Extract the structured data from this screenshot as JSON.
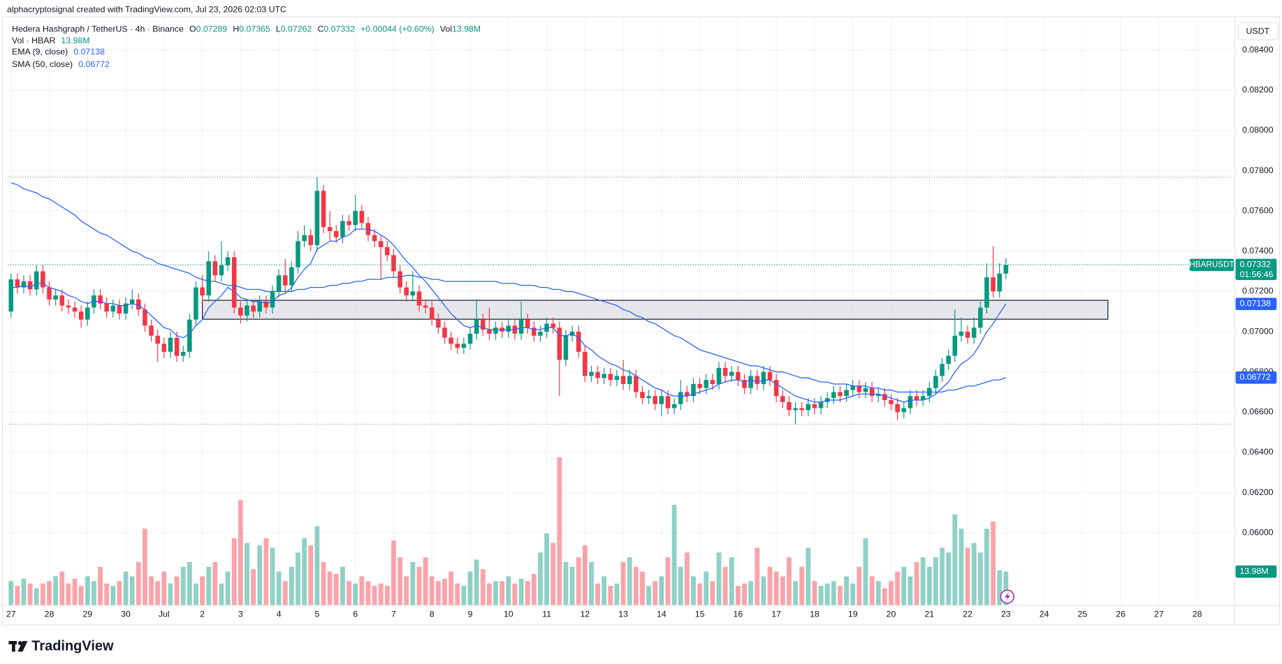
{
  "attribution": "alphacryptosignal created with TradingView.com, Jul 23, 2026 02:03 UTC",
  "brand": "TradingView",
  "chart_data": {
    "type": "candlestick",
    "title": "Hedera Hashgraph / TetherUS · 4h · Binance",
    "ohlc_labels": [
      "O",
      "H",
      "L",
      "C"
    ],
    "change": "+0.00044 (+0.60%)",
    "vol_label": "Vol",
    "volume_name": "Vol · HBAR",
    "volume_label": "13.98M",
    "currency": "USDT",
    "symbol_label": "HBARUSDT",
    "countdown": "01:56:46",
    "up_color": "#089981",
    "down_color": "#f23645",
    "grid": true,
    "xlim": [
      -0.5,
      191.5
    ],
    "xticks": [
      {
        "value": 0,
        "label": "27"
      },
      {
        "value": 6,
        "label": "28"
      },
      {
        "value": 12,
        "label": "29"
      },
      {
        "value": 18,
        "label": "30"
      },
      {
        "value": 24,
        "label": "Jul"
      },
      {
        "value": 30,
        "label": "2"
      },
      {
        "value": 36,
        "label": "3"
      },
      {
        "value": 42,
        "label": "4"
      },
      {
        "value": 48,
        "label": "5"
      },
      {
        "value": 54,
        "label": "6"
      },
      {
        "value": 60,
        "label": "7"
      },
      {
        "value": 66,
        "label": "8"
      },
      {
        "value": 72,
        "label": "9"
      },
      {
        "value": 78,
        "label": "10"
      },
      {
        "value": 84,
        "label": "11"
      },
      {
        "value": 90,
        "label": "12"
      },
      {
        "value": 96,
        "label": "13"
      },
      {
        "value": 102,
        "label": "14"
      },
      {
        "value": 108,
        "label": "15"
      },
      {
        "value": 114,
        "label": "16"
      },
      {
        "value": 120,
        "label": "17"
      },
      {
        "value": 126,
        "label": "18"
      },
      {
        "value": 132,
        "label": "19"
      },
      {
        "value": 138,
        "label": "20"
      },
      {
        "value": 144,
        "label": "21"
      },
      {
        "value": 150,
        "label": "22"
      },
      {
        "value": 156,
        "label": "23"
      },
      {
        "value": 162,
        "label": "24"
      },
      {
        "value": 168,
        "label": "25"
      },
      {
        "value": 174,
        "label": "26"
      },
      {
        "value": 180,
        "label": "27"
      },
      {
        "value": 186,
        "label": "28"
      }
    ],
    "ylim": [
      0.05642,
      0.08567
    ],
    "yticks": [
      {
        "value": 0.084,
        "label": "0.08400"
      },
      {
        "value": 0.082,
        "label": "0.08200"
      },
      {
        "value": 0.08,
        "label": "0.08000"
      },
      {
        "value": 0.078,
        "label": "0.07800"
      },
      {
        "value": 0.076,
        "label": "0.07600"
      },
      {
        "value": 0.074,
        "label": "0.07400"
      },
      {
        "value": 0.072,
        "label": "0.07200"
      },
      {
        "value": 0.07,
        "label": "0.07000"
      },
      {
        "value": 0.068,
        "label": "0.06800"
      },
      {
        "value": 0.066,
        "label": "0.06600"
      },
      {
        "value": 0.064,
        "label": "0.06400"
      },
      {
        "value": 0.062,
        "label": "0.06200"
      },
      {
        "value": 0.06,
        "label": "0.06000"
      }
    ],
    "zone": {
      "from": 30,
      "to": 172,
      "top": 0.07156,
      "bottom": 0.07062
    },
    "open": [
      0.071,
      0.0726,
      0.0722,
      0.0725,
      0.0721,
      0.073,
      0.0722,
      0.0716,
      0.0718,
      0.0713,
      0.0712,
      0.071,
      0.0706,
      0.0712,
      0.0718,
      0.0714,
      0.071,
      0.0713,
      0.0709,
      0.0714,
      0.0716,
      0.0711,
      0.0703,
      0.0698,
      0.0694,
      0.069,
      0.0697,
      0.0688,
      0.069,
      0.0706,
      0.0722,
      0.0718,
      0.0735,
      0.0728,
      0.0733,
      0.0737,
      0.0712,
      0.0708,
      0.0713,
      0.071,
      0.0715,
      0.0712,
      0.072,
      0.0728,
      0.0723,
      0.0732,
      0.0745,
      0.0748,
      0.0743,
      0.077,
      0.0752,
      0.075,
      0.0747,
      0.0755,
      0.0753,
      0.076,
      0.0754,
      0.0748,
      0.0745,
      0.0742,
      0.0738,
      0.073,
      0.0722,
      0.0718,
      0.072,
      0.0713,
      0.0712,
      0.0706,
      0.0702,
      0.0697,
      0.0694,
      0.0692,
      0.0694,
      0.0699,
      0.0706,
      0.0701,
      0.0699,
      0.0702,
      0.07,
      0.0703,
      0.0699,
      0.0706,
      0.0702,
      0.0698,
      0.07,
      0.0704,
      0.0702,
      0.0686,
      0.0698,
      0.07,
      0.069,
      0.0678,
      0.068,
      0.0677,
      0.0679,
      0.0676,
      0.0678,
      0.0674,
      0.0678,
      0.067,
      0.0667,
      0.0668,
      0.0664,
      0.0668,
      0.0662,
      0.0664,
      0.067,
      0.0668,
      0.0674,
      0.0672,
      0.0676,
      0.0674,
      0.0682,
      0.0678,
      0.068,
      0.0676,
      0.0672,
      0.0678,
      0.0674,
      0.068,
      0.0676,
      0.0668,
      0.0665,
      0.0661,
      0.0662,
      0.0661,
      0.0664,
      0.0662,
      0.0665,
      0.0667,
      0.067,
      0.0668,
      0.0671,
      0.0673,
      0.067,
      0.0672,
      0.0668,
      0.0669,
      0.0666,
      0.0664,
      0.066,
      0.0662,
      0.0668,
      0.0666,
      0.0668,
      0.0672,
      0.0678,
      0.0684,
      0.0688,
      0.0698,
      0.07,
      0.0697,
      0.0702,
      0.0712,
      0.0727,
      0.072,
      0.07289
    ],
    "high": [
      0.0729,
      0.0729,
      0.0728,
      0.0728,
      0.0733,
      0.0733,
      0.0725,
      0.0721,
      0.0721,
      0.0716,
      0.0715,
      0.0713,
      0.0715,
      0.0721,
      0.0721,
      0.0717,
      0.0716,
      0.0716,
      0.0717,
      0.0721,
      0.0719,
      0.0714,
      0.0706,
      0.0701,
      0.0697,
      0.07,
      0.07,
      0.0693,
      0.0709,
      0.0725,
      0.0728,
      0.074,
      0.0738,
      0.0745,
      0.074,
      0.074,
      0.0715,
      0.0716,
      0.0716,
      0.0718,
      0.0718,
      0.0723,
      0.0731,
      0.0736,
      0.0735,
      0.075,
      0.0753,
      0.0751,
      0.07768,
      0.0773,
      0.076,
      0.0753,
      0.0758,
      0.0758,
      0.0768,
      0.0763,
      0.0757,
      0.0751,
      0.0748,
      0.0745,
      0.0741,
      0.0733,
      0.0725,
      0.073,
      0.0723,
      0.0716,
      0.0715,
      0.0709,
      0.0705,
      0.07,
      0.0697,
      0.0697,
      0.0702,
      0.0716,
      0.0709,
      0.0712,
      0.0705,
      0.0705,
      0.0706,
      0.0706,
      0.0715,
      0.0709,
      0.0705,
      0.0703,
      0.0707,
      0.0707,
      0.0705,
      0.0701,
      0.0703,
      0.0703,
      0.0693,
      0.0683,
      0.0683,
      0.0682,
      0.0682,
      0.0681,
      0.0686,
      0.0681,
      0.0681,
      0.0673,
      0.0671,
      0.0671,
      0.0671,
      0.0671,
      0.0667,
      0.0676,
      0.0673,
      0.0677,
      0.0677,
      0.0679,
      0.0679,
      0.0685,
      0.0685,
      0.0683,
      0.0683,
      0.0679,
      0.0681,
      0.0681,
      0.0683,
      0.0683,
      0.0679,
      0.0671,
      0.0668,
      0.0665,
      0.0665,
      0.0667,
      0.0667,
      0.0668,
      0.067,
      0.0673,
      0.0673,
      0.0674,
      0.0676,
      0.0676,
      0.0675,
      0.0675,
      0.0672,
      0.0672,
      0.0669,
      0.0667,
      0.0665,
      0.0671,
      0.0671,
      0.0671,
      0.0675,
      0.0681,
      0.0687,
      0.0691,
      0.0711,
      0.0707,
      0.0703,
      0.0707,
      0.0715,
      0.0734,
      0.07425,
      0.0734,
      0.07365
    ],
    "low": [
      0.0707,
      0.0719,
      0.0719,
      0.0718,
      0.0718,
      0.0719,
      0.0713,
      0.0713,
      0.071,
      0.0709,
      0.0707,
      0.0702,
      0.0703,
      0.0709,
      0.0711,
      0.0707,
      0.0707,
      0.0706,
      0.0706,
      0.0711,
      0.0708,
      0.07,
      0.0695,
      0.0685,
      0.0687,
      0.0687,
      0.0685,
      0.0685,
      0.0687,
      0.0703,
      0.0715,
      0.0715,
      0.0725,
      0.0725,
      0.073,
      0.0709,
      0.0704,
      0.0705,
      0.0707,
      0.0707,
      0.0709,
      0.0709,
      0.0717,
      0.072,
      0.072,
      0.0729,
      0.0742,
      0.074,
      0.074,
      0.0749,
      0.0745,
      0.0744,
      0.0744,
      0.075,
      0.075,
      0.0751,
      0.0745,
      0.0742,
      0.0726,
      0.0735,
      0.0727,
      0.0719,
      0.0715,
      0.0715,
      0.071,
      0.0709,
      0.0703,
      0.0699,
      0.0694,
      0.0691,
      0.0689,
      0.0689,
      0.0691,
      0.0696,
      0.0698,
      0.0696,
      0.0696,
      0.0697,
      0.0697,
      0.0696,
      0.0696,
      0.0699,
      0.0695,
      0.0695,
      0.0697,
      0.0699,
      0.0668,
      0.0683,
      0.0695,
      0.0687,
      0.0675,
      0.0675,
      0.0674,
      0.0674,
      0.0673,
      0.0673,
      0.0671,
      0.0671,
      0.0667,
      0.0664,
      0.0664,
      0.0661,
      0.0658,
      0.0659,
      0.0659,
      0.0661,
      0.0665,
      0.0665,
      0.0669,
      0.0669,
      0.0671,
      0.0671,
      0.0675,
      0.0675,
      0.0673,
      0.0669,
      0.0669,
      0.0671,
      0.0671,
      0.0673,
      0.0665,
      0.0662,
      0.0658,
      0.0654,
      0.0658,
      0.0658,
      0.0659,
      0.0659,
      0.0662,
      0.0664,
      0.0665,
      0.0665,
      0.0668,
      0.0667,
      0.0667,
      0.0665,
      0.0665,
      0.0663,
      0.0661,
      0.0656,
      0.0657,
      0.0659,
      0.0663,
      0.0663,
      0.0665,
      0.0669,
      0.0675,
      0.0681,
      0.0685,
      0.0695,
      0.0694,
      0.0694,
      0.0699,
      0.0709,
      0.0717,
      0.0717,
      0.07262
    ],
    "close": [
      0.0726,
      0.0722,
      0.0725,
      0.0721,
      0.073,
      0.0722,
      0.0716,
      0.0718,
      0.0713,
      0.0712,
      0.071,
      0.0706,
      0.0712,
      0.0718,
      0.0714,
      0.071,
      0.0713,
      0.0709,
      0.0714,
      0.0716,
      0.0711,
      0.0703,
      0.0698,
      0.0694,
      0.069,
      0.0697,
      0.0688,
      0.069,
      0.0706,
      0.0722,
      0.0718,
      0.0735,
      0.0728,
      0.0733,
      0.0737,
      0.0712,
      0.0708,
      0.0713,
      0.071,
      0.0715,
      0.0712,
      0.072,
      0.0728,
      0.0723,
      0.0732,
      0.0745,
      0.0748,
      0.0743,
      0.077,
      0.0752,
      0.075,
      0.0747,
      0.0755,
      0.0753,
      0.076,
      0.0754,
      0.0748,
      0.0745,
      0.0742,
      0.0738,
      0.073,
      0.0722,
      0.0718,
      0.072,
      0.0713,
      0.0712,
      0.0706,
      0.0702,
      0.0697,
      0.0694,
      0.0692,
      0.0694,
      0.0699,
      0.0706,
      0.0701,
      0.0699,
      0.0702,
      0.07,
      0.0703,
      0.0699,
      0.0706,
      0.0702,
      0.0698,
      0.07,
      0.0704,
      0.0702,
      0.0686,
      0.0698,
      0.07,
      0.069,
      0.0678,
      0.068,
      0.0677,
      0.0679,
      0.0676,
      0.0678,
      0.0674,
      0.0678,
      0.067,
      0.0667,
      0.0668,
      0.0664,
      0.0668,
      0.0662,
      0.0664,
      0.067,
      0.0668,
      0.0674,
      0.0672,
      0.0676,
      0.0674,
      0.0682,
      0.0678,
      0.068,
      0.0676,
      0.0672,
      0.0678,
      0.0674,
      0.068,
      0.0676,
      0.0668,
      0.0665,
      0.0661,
      0.0662,
      0.0661,
      0.0664,
      0.0662,
      0.0665,
      0.0667,
      0.067,
      0.0668,
      0.0671,
      0.0673,
      0.067,
      0.0672,
      0.0668,
      0.0669,
      0.0666,
      0.0664,
      0.066,
      0.0662,
      0.0668,
      0.0666,
      0.0668,
      0.0672,
      0.0678,
      0.0684,
      0.0688,
      0.0698,
      0.07,
      0.0697,
      0.0702,
      0.0712,
      0.0727,
      0.072,
      0.07289,
      0.07332
    ],
    "volume": [
      10,
      8,
      11,
      9,
      7,
      9,
      10,
      12,
      14,
      9,
      11,
      8,
      12,
      10,
      16,
      9,
      8,
      10,
      14,
      12,
      18,
      32,
      12,
      10,
      14,
      9,
      12,
      16,
      18,
      9,
      12,
      16,
      18,
      9,
      14,
      28,
      44,
      26,
      15,
      25,
      28,
      24,
      14,
      10,
      16,
      22,
      28,
      25,
      33,
      18,
      14,
      13,
      16,
      10,
      9,
      12,
      10,
      8,
      9,
      8,
      27,
      20,
      12,
      18,
      16,
      20,
      12,
      10,
      11,
      14,
      9,
      8,
      14,
      19,
      15,
      9,
      10,
      10,
      12,
      9,
      11,
      10,
      13,
      22,
      30,
      26,
      62,
      18,
      16,
      20,
      25,
      18,
      9,
      12,
      8,
      9,
      18,
      20,
      16,
      14,
      8,
      10,
      12,
      20,
      42,
      16,
      22,
      12,
      9,
      14,
      10,
      22,
      16,
      20,
      8,
      9,
      10,
      24,
      12,
      16,
      14,
      12,
      20,
      10,
      16,
      24,
      10,
      8,
      9,
      10,
      8,
      12,
      9,
      16,
      28,
      12,
      10,
      7,
      10,
      14,
      16,
      12,
      18,
      20,
      16,
      20,
      24,
      22,
      38,
      32,
      24,
      26,
      22,
      32,
      35,
      14.5,
      13.98
    ],
    "indicators": [
      {
        "name": "EMA (9, close)",
        "color": "#2962ff",
        "values": [
          0.0722,
          0.0722,
          0.0723,
          0.0722,
          0.0724,
          0.0724,
          0.0722,
          0.0721,
          0.072,
          0.0718,
          0.0717,
          0.0715,
          0.0714,
          0.0715,
          0.0715,
          0.0714,
          0.0714,
          0.0713,
          0.0713,
          0.0714,
          0.0713,
          0.0711,
          0.0708,
          0.0705,
          0.0702,
          0.0701,
          0.0698,
          0.0697,
          0.0699,
          0.0703,
          0.0706,
          0.0712,
          0.0715,
          0.0718,
          0.0722,
          0.072,
          0.0717,
          0.0716,
          0.0715,
          0.0715,
          0.0714,
          0.0715,
          0.0718,
          0.0719,
          0.0722,
          0.0727,
          0.0731,
          0.0734,
          0.0741,
          0.0743,
          0.0745,
          0.0745,
          0.0747,
          0.0748,
          0.0751,
          0.0751,
          0.0751,
          0.075,
          0.0748,
          0.0746,
          0.0743,
          0.0739,
          0.0735,
          0.0732,
          0.0728,
          0.0725,
          0.0721,
          0.0717,
          0.0713,
          0.0709,
          0.0706,
          0.0703,
          0.0702,
          0.0703,
          0.0702,
          0.0701,
          0.0701,
          0.0701,
          0.0701,
          0.0701,
          0.0702,
          0.0702,
          0.0701,
          0.0701,
          0.0702,
          0.0702,
          0.0698,
          0.0698,
          0.0699,
          0.0697,
          0.0693,
          0.0691,
          0.0688,
          0.0686,
          0.0684,
          0.0683,
          0.0681,
          0.068,
          0.0678,
          0.0676,
          0.0674,
          0.0672,
          0.0671,
          0.0669,
          0.0668,
          0.0668,
          0.0668,
          0.0669,
          0.067,
          0.0671,
          0.0672,
          0.0674,
          0.0675,
          0.0676,
          0.0676,
          0.0675,
          0.0676,
          0.0675,
          0.0676,
          0.0676,
          0.0674,
          0.0672,
          0.067,
          0.0668,
          0.0667,
          0.0666,
          0.0665,
          0.0665,
          0.0666,
          0.0666,
          0.0666,
          0.0667,
          0.0668,
          0.0669,
          0.0669,
          0.0669,
          0.0669,
          0.0668,
          0.0667,
          0.0666,
          0.0665,
          0.0666,
          0.0666,
          0.0666,
          0.0667,
          0.0669,
          0.0672,
          0.0675,
          0.068,
          0.0684,
          0.0686,
          0.0689,
          0.0694,
          0.07,
          0.0704,
          0.07091,
          0.07138
        ]
      },
      {
        "name": "SMA (50, close)",
        "color": "#2962ff",
        "values": [
          0.0774,
          0.0773,
          0.0771,
          0.077,
          0.0769,
          0.0767,
          0.0766,
          0.0764,
          0.0762,
          0.076,
          0.0758,
          0.0755,
          0.0753,
          0.0751,
          0.0749,
          0.0748,
          0.0746,
          0.0744,
          0.0742,
          0.074,
          0.0739,
          0.0737,
          0.0736,
          0.0734,
          0.0733,
          0.0732,
          0.0731,
          0.073,
          0.0729,
          0.0727,
          0.0726,
          0.0725,
          0.0725,
          0.0724,
          0.0723,
          0.0723,
          0.0722,
          0.0721,
          0.0721,
          0.0721,
          0.072,
          0.072,
          0.072,
          0.072,
          0.072,
          0.0721,
          0.0721,
          0.0722,
          0.0722,
          0.0722,
          0.0723,
          0.0723,
          0.0724,
          0.0724,
          0.0725,
          0.0725,
          0.0726,
          0.0726,
          0.0726,
          0.0727,
          0.0727,
          0.0727,
          0.0728,
          0.0728,
          0.0727,
          0.0727,
          0.0726,
          0.0726,
          0.0725,
          0.0725,
          0.0725,
          0.0725,
          0.0725,
          0.0725,
          0.0725,
          0.0725,
          0.0725,
          0.0724,
          0.0724,
          0.0724,
          0.0723,
          0.0723,
          0.0723,
          0.0722,
          0.0722,
          0.0721,
          0.0721,
          0.072,
          0.072,
          0.0719,
          0.0718,
          0.0717,
          0.0716,
          0.0715,
          0.0714,
          0.0713,
          0.0711,
          0.071,
          0.0708,
          0.0707,
          0.0705,
          0.0704,
          0.0702,
          0.07,
          0.0698,
          0.0697,
          0.0695,
          0.0693,
          0.0691,
          0.069,
          0.0689,
          0.0688,
          0.0687,
          0.0686,
          0.0685,
          0.0684,
          0.0683,
          0.0683,
          0.0682,
          0.0681,
          0.068,
          0.068,
          0.0679,
          0.0678,
          0.0677,
          0.0677,
          0.0676,
          0.0675,
          0.0675,
          0.0674,
          0.0674,
          0.0674,
          0.0673,
          0.0673,
          0.0673,
          0.0672,
          0.0672,
          0.0671,
          0.0671,
          0.067,
          0.067,
          0.067,
          0.067,
          0.067,
          0.067,
          0.067,
          0.067,
          0.0671,
          0.0671,
          0.0672,
          0.0673,
          0.0673,
          0.0674,
          0.0675,
          0.0676,
          0.0676,
          0.06772
        ]
      }
    ]
  }
}
